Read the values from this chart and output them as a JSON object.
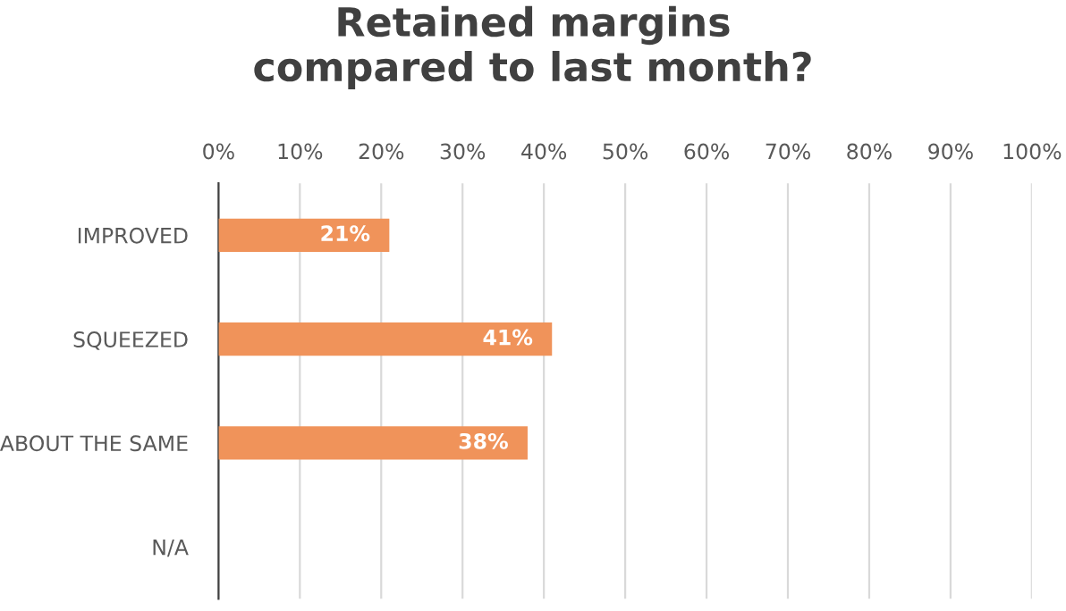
{
  "chart_data": {
    "type": "bar",
    "orientation": "horizontal",
    "title": "Retained margins\ncompared to last month?",
    "categories": [
      "IMPROVED",
      "SQUEEZED",
      "ABOUT THE SAME",
      "N/A"
    ],
    "values": [
      21,
      41,
      38,
      null
    ],
    "value_labels": [
      "21%",
      "41%",
      "38%",
      null
    ],
    "color": "#f0935a",
    "xlim": [
      0,
      100
    ],
    "xticks": [
      {
        "value": 0,
        "label": "0%"
      },
      {
        "value": 10,
        "label": "10%"
      },
      {
        "value": 20,
        "label": "20%"
      },
      {
        "value": 30,
        "label": "30%"
      },
      {
        "value": 40,
        "label": "40%"
      },
      {
        "value": 50,
        "label": "50%"
      },
      {
        "value": 60,
        "label": "60%"
      },
      {
        "value": 70,
        "label": "70%"
      },
      {
        "value": 80,
        "label": "80%"
      },
      {
        "value": 90,
        "label": "90%"
      },
      {
        "value": 100,
        "label": "100%"
      }
    ],
    "grid": "x"
  }
}
